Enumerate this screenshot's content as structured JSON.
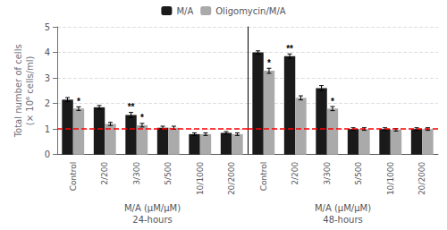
{
  "chart_data": {
    "type": "bar",
    "ylabel": "Total number of cells\n(× 10⁶ cells/ml)",
    "ylim": [
      0,
      5
    ],
    "yticks": [
      0,
      1,
      2,
      3,
      4,
      5
    ],
    "grid": true,
    "legend": "top",
    "reference_line": {
      "value": 1.0,
      "color": "#ff0000",
      "line_style": "dashed"
    },
    "groups": [
      {
        "xlabel": "M/A (μM/μM)",
        "title": "24-hours",
        "categories": [
          "Control",
          "2/200",
          "3/300",
          "5/500",
          "10/1000",
          "20/2000"
        ],
        "series": [
          {
            "name": "M/A",
            "color": "#1a1a1a",
            "values": [
              2.15,
              1.85,
              1.55,
              1.05,
              0.8,
              0.85
            ],
            "errors": [
              0.08,
              0.07,
              0.1,
              0.06,
              0.05,
              0.05
            ],
            "annotations": [
              null,
              null,
              "**",
              null,
              null,
              null
            ]
          },
          {
            "name": "Oligomycin/M/A",
            "color": "#aaaaaa",
            "values": [
              1.8,
              1.2,
              1.15,
              1.05,
              0.8,
              0.8
            ],
            "errors": [
              0.07,
              0.06,
              0.07,
              0.06,
              0.05,
              0.05
            ],
            "annotations": [
              "*",
              null,
              "*",
              null,
              null,
              null
            ]
          }
        ]
      },
      {
        "xlabel": "M/A (μM/μM)",
        "title": "48-hours",
        "categories": [
          "Control",
          "2/200",
          "3/300",
          "5/500",
          "10/1000",
          "20/2000"
        ],
        "series": [
          {
            "name": "M/A",
            "color": "#1a1a1a",
            "values": [
              4.0,
              3.85,
              2.6,
              1.0,
              1.0,
              1.0
            ],
            "errors": [
              0.06,
              0.09,
              0.1,
              0.05,
              0.05,
              0.05
            ],
            "annotations": [
              null,
              "**",
              null,
              null,
              null,
              null
            ]
          },
          {
            "name": "Oligomycin/M/A",
            "color": "#aaaaaa",
            "values": [
              3.28,
              2.22,
              1.8,
              1.0,
              0.97,
              1.0
            ],
            "errors": [
              0.1,
              0.08,
              0.08,
              0.05,
              0.05,
              0.05
            ],
            "annotations": [
              "*",
              null,
              "*",
              null,
              null,
              null
            ]
          }
        ]
      }
    ]
  }
}
